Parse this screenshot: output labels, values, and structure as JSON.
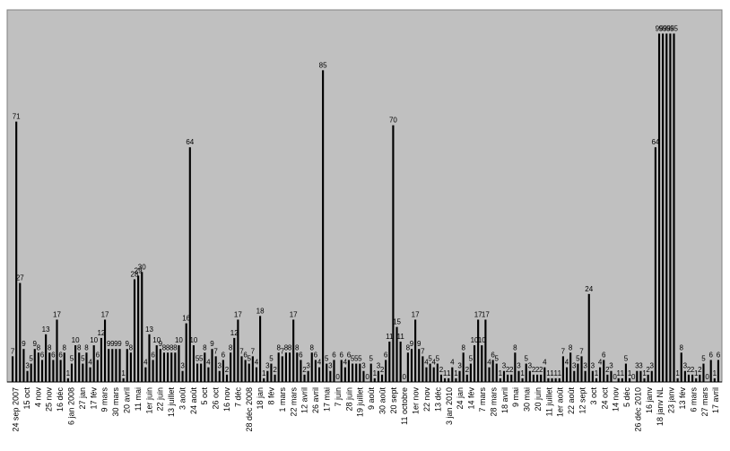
{
  "chart_data": {
    "type": "bar",
    "title": "",
    "xlabel": "",
    "ylabel": "",
    "ylim": [
      0,
      100
    ],
    "grid": false,
    "legend": "none",
    "colors": {
      "plot_background": "#c0c0c0",
      "bar": "#000000",
      "page_background": "#ffffff"
    },
    "x_tick_labels": [
      "24 sep 2007",
      "15 oct",
      "4 nov",
      "25 nov",
      "16 déc",
      "6 jan 2008",
      "27 jan",
      "17 fév",
      "9 mars",
      "30 mars",
      "20 avril",
      "11 mai",
      "1er juin",
      "22 juin",
      "13 juillet",
      "3 août",
      "24 août",
      "5 oct",
      "26 oct",
      "16 nov",
      "7 déc",
      "28 déc 2008",
      "18 jan",
      "8 fév",
      "1 mars",
      "22 mars",
      "12 avril",
      "26 avril",
      "17 mai",
      "7 juin",
      "28 juin",
      "19 juillet",
      "9 août",
      "30 août",
      "20 sept",
      "11 octobre",
      "1er nov",
      "22 nov",
      "13 déc",
      "3 jan 2010",
      "24 jan",
      "14 fév",
      "7 mars",
      "28 mars",
      "18 avril",
      "9 mai",
      "30 mai",
      "20 juin",
      "11 juillet",
      "1er août",
      "22 août",
      "12 sept",
      "3 oct",
      "24 oct",
      "14 nov",
      "5 déc",
      "26 déc 2010",
      "16 janv",
      "18 janv NL",
      "23 janv",
      "13 fév",
      "6 mars",
      "27 mars",
      "17 avril"
    ],
    "values": [
      7,
      71,
      27,
      9,
      3,
      5,
      9,
      8,
      6,
      13,
      8,
      6,
      17,
      6,
      8,
      1,
      5,
      10,
      8,
      5,
      8,
      4,
      10,
      6,
      12,
      17,
      9,
      9,
      9,
      9,
      1,
      9,
      8,
      28,
      29,
      30,
      4,
      13,
      6,
      10,
      9,
      8,
      8,
      8,
      8,
      10,
      3,
      16,
      64,
      10,
      5,
      5,
      8,
      4,
      9,
      7,
      3,
      6,
      2,
      8,
      12,
      17,
      7,
      6,
      5,
      7,
      4,
      18,
      1,
      3,
      5,
      2,
      8,
      7,
      8,
      8,
      17,
      8,
      6,
      2,
      3,
      8,
      6,
      4,
      85,
      5,
      3,
      6,
      0,
      6,
      4,
      6,
      5,
      5,
      5,
      3,
      0,
      5,
      1,
      3,
      2,
      6,
      11,
      70,
      15,
      11,
      0,
      8,
      9,
      17,
      9,
      7,
      4,
      5,
      4,
      5,
      2,
      1,
      1,
      4,
      1,
      3,
      8,
      2,
      5,
      10,
      17,
      10,
      17,
      4,
      6,
      5,
      1,
      3,
      2,
      2,
      8,
      3,
      1,
      5,
      3,
      2,
      2,
      2,
      4,
      1,
      1,
      1,
      1,
      7,
      4,
      8,
      3,
      5,
      7,
      3,
      24,
      3,
      1,
      4,
      6,
      2,
      3,
      0,
      1,
      1,
      5,
      1,
      0,
      3,
      3,
      1,
      2,
      3,
      64,
      95,
      95,
      95,
      95,
      95,
      1,
      8,
      3,
      2,
      2,
      1,
      2,
      5,
      0,
      6,
      1,
      6
    ],
    "data_labels": [
      "7",
      "71",
      "27",
      "9",
      "3",
      "5",
      "9",
      "8",
      "6",
      "13",
      "8",
      "6",
      "17",
      "6",
      "8",
      "1",
      "5",
      "10",
      "8",
      "5",
      "8",
      "4",
      "10",
      "6",
      "12",
      "17",
      "9",
      "9",
      "9",
      "9",
      "1",
      "9",
      "8",
      "28",
      "29",
      "30",
      "4",
      "13",
      "6",
      "10",
      "9",
      "8",
      "8",
      "8",
      "8",
      "10",
      "3",
      "16",
      "64",
      "10",
      "5",
      "5",
      "8",
      "4",
      "9",
      "7",
      "3",
      "6",
      "2",
      "8",
      "12",
      "17",
      "7",
      "6",
      "5",
      "7",
      "4",
      "18",
      "1",
      "3",
      "5",
      "2",
      "8",
      "7",
      "8",
      "8",
      "17",
      "8",
      "6",
      "2",
      "3",
      "8",
      "6",
      "4",
      "85",
      "5",
      "3",
      "6",
      "0",
      "6",
      "4",
      "6",
      "5",
      "5",
      "5",
      "3",
      "0",
      "5",
      "1",
      "3",
      "2",
      "6",
      "11",
      "70",
      "15",
      "11",
      "0",
      "8",
      "9",
      "17",
      "9",
      "7",
      "4",
      "5",
      "4",
      "5",
      "2",
      "1",
      "1",
      "4",
      "1",
      "3",
      "8",
      "2",
      "5",
      "10",
      "17",
      "10",
      "17",
      "4",
      "6",
      "5",
      "1",
      "3",
      "2",
      "2",
      "8",
      "3",
      "1",
      "5",
      "3",
      "2",
      "2",
      "2",
      "4",
      "1",
      "1",
      "1",
      "1",
      "7",
      "4",
      "8",
      "3",
      "5",
      "7",
      "3",
      "24",
      "3",
      "1",
      "4",
      "6",
      "2",
      "3",
      "0",
      "1",
      "1",
      "5",
      "1",
      "0",
      "3",
      "3",
      "1",
      "2",
      "3",
      "64",
      "95",
      "95",
      "95",
      "95",
      "95",
      "1",
      "8",
      "3",
      "2",
      "2",
      "1",
      "2",
      "5",
      "0",
      "6",
      "1",
      "6"
    ]
  }
}
